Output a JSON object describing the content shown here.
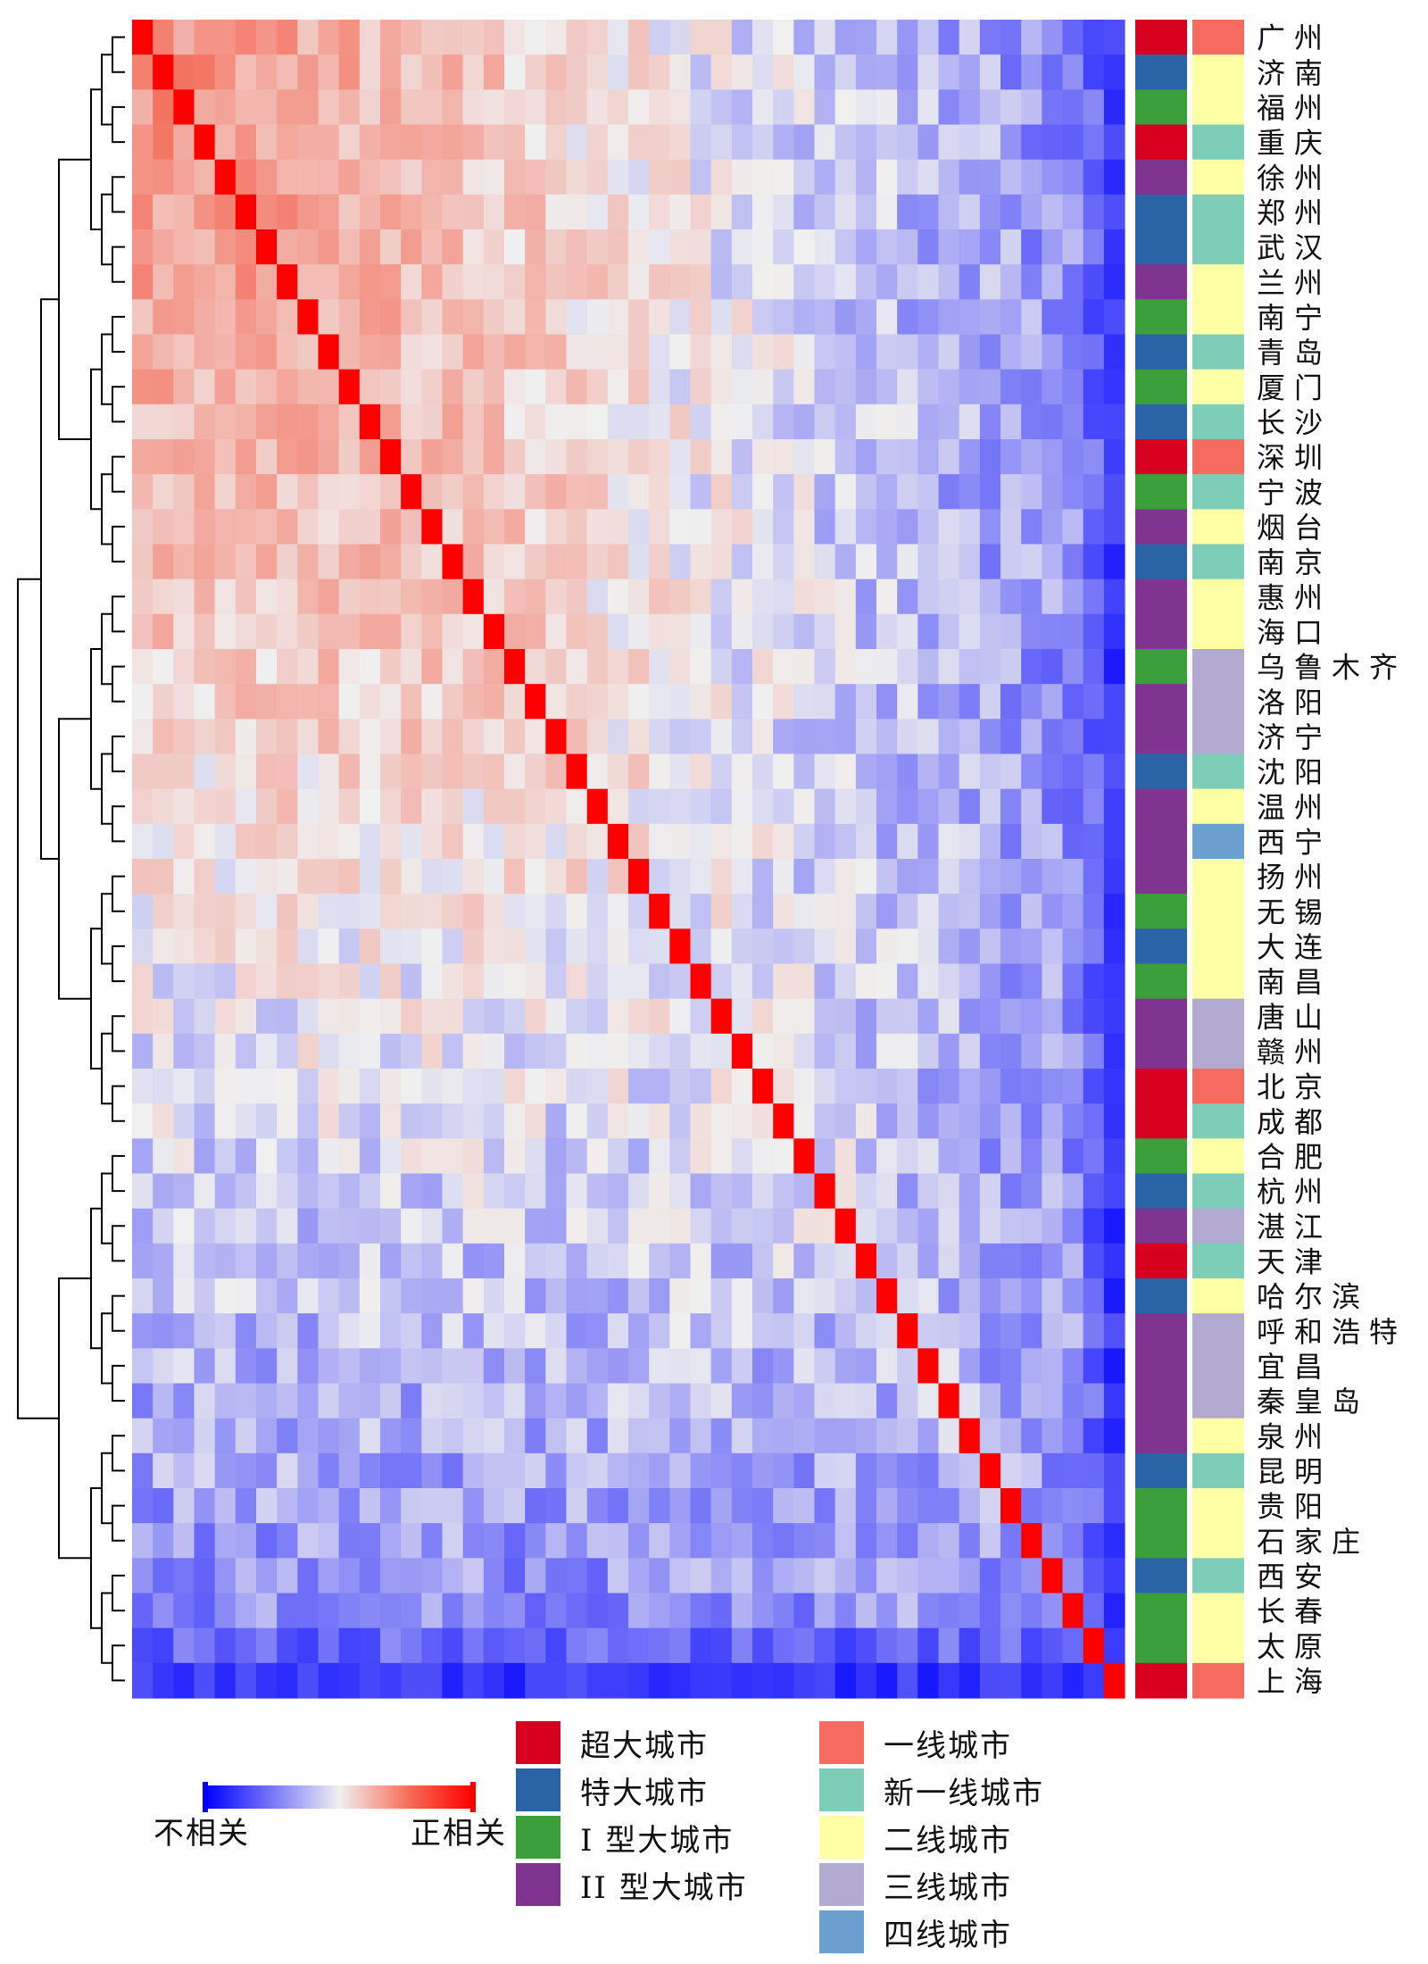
{
  "chart_data": {
    "type": "heatmap",
    "title": "",
    "value_range": [
      -1,
      1
    ],
    "rows": [
      "广州",
      "济南",
      "福州",
      "重庆",
      "徐州",
      "郑州",
      "武汉",
      "兰州",
      "南宁",
      "青岛",
      "厦门",
      "长沙",
      "深圳",
      "宁波",
      "烟台",
      "南京",
      "惠州",
      "海口",
      "乌鲁木齐",
      "洛阳",
      "济宁",
      "沈阳",
      "温州",
      "西宁",
      "扬州",
      "无锡",
      "大连",
      "南昌",
      "唐山",
      "赣州",
      "北京",
      "成都",
      "合肥",
      "杭州",
      "湛江",
      "天津",
      "哈尔滨",
      "呼和浩特",
      "宜昌",
      "秦皇岛",
      "泉州",
      "昆明",
      "贵阳",
      "石家庄",
      "西安",
      "长春",
      "太原",
      "上海"
    ],
    "city_size": [
      "超大城市",
      "特大城市",
      "I 型大城市",
      "超大城市",
      "II 型大城市",
      "特大城市",
      "特大城市",
      "II 型大城市",
      "I 型大城市",
      "特大城市",
      "I 型大城市",
      "特大城市",
      "超大城市",
      "I 型大城市",
      "II 型大城市",
      "特大城市",
      "II 型大城市",
      "II 型大城市",
      "I 型大城市",
      "II 型大城市",
      "II 型大城市",
      "特大城市",
      "II 型大城市",
      "II 型大城市",
      "II 型大城市",
      "I 型大城市",
      "特大城市",
      "I 型大城市",
      "II 型大城市",
      "II 型大城市",
      "超大城市",
      "超大城市",
      "I 型大城市",
      "特大城市",
      "II 型大城市",
      "超大城市",
      "特大城市",
      "II 型大城市",
      "II 型大城市",
      "II 型大城市",
      "II 型大城市",
      "特大城市",
      "I 型大城市",
      "I 型大城市",
      "特大城市",
      "I 型大城市",
      "I 型大城市",
      "超大城市"
    ],
    "city_tier": [
      "一线城市",
      "二线城市",
      "二线城市",
      "新一线城市",
      "二线城市",
      "新一线城市",
      "新一线城市",
      "二线城市",
      "二线城市",
      "新一线城市",
      "二线城市",
      "新一线城市",
      "一线城市",
      "新一线城市",
      "二线城市",
      "新一线城市",
      "二线城市",
      "二线城市",
      "三线城市",
      "三线城市",
      "三线城市",
      "新一线城市",
      "二线城市",
      "四线城市",
      "二线城市",
      "二线城市",
      "二线城市",
      "二线城市",
      "三线城市",
      "三线城市",
      "一线城市",
      "新一线城市",
      "二线城市",
      "新一线城市",
      "三线城市",
      "新一线城市",
      "二线城市",
      "三线城市",
      "三线城市",
      "三线城市",
      "二线城市",
      "新一线城市",
      "二线城市",
      "二线城市",
      "新一线城市",
      "二线城市",
      "二线城市",
      "一线城市"
    ],
    "color_scale": {
      "low_label": "不相关",
      "high_label": "正相关",
      "low_color": "#0000ff",
      "mid_color": "#f0f0f0",
      "high_color": "#ff0000"
    },
    "legend_size": [
      {
        "label": "超大城市",
        "color": "#d7001f"
      },
      {
        "label": "特大城市",
        "color": "#2b64a6"
      },
      {
        "label": "I 型大城市",
        "color": "#3b9f3b"
      },
      {
        "label": "II 型大城市",
        "color": "#7f358f"
      }
    ],
    "legend_tier": [
      {
        "label": "一线城市",
        "color": "#f56b5f"
      },
      {
        "label": "新一线城市",
        "color": "#7dcdb9"
      },
      {
        "label": "二线城市",
        "color": "#ffffa6"
      },
      {
        "label": "三线城市",
        "color": "#b3aad2"
      },
      {
        "label": "四线城市",
        "color": "#6b9fd0"
      }
    ]
  }
}
